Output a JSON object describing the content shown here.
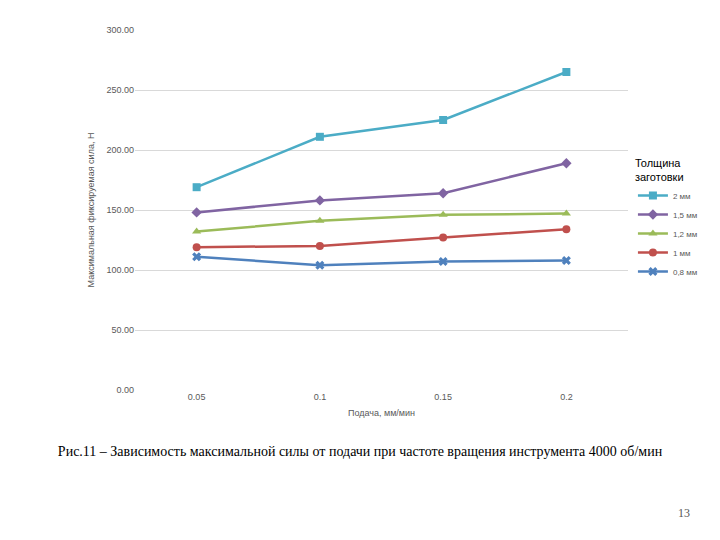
{
  "chart_data": {
    "type": "line",
    "x_label": "Подача, мм/мин",
    "y_label": "Максимальная фиксируемая сила, Н",
    "categories": [
      "0.05",
      "0.1",
      "0.15",
      "0.2"
    ],
    "legend_title": "Толщина заготовки",
    "legend": "right",
    "grid": true,
    "ylim": [
      0,
      300
    ],
    "yticks": [
      {
        "value": 0,
        "label": "0.00"
      },
      {
        "value": 50,
        "label": "50.00"
      },
      {
        "value": 100,
        "label": "100.00"
      },
      {
        "value": 150,
        "label": "150.00"
      },
      {
        "value": 200,
        "label": "200.00"
      },
      {
        "value": 250,
        "label": "250.00"
      },
      {
        "value": 300,
        "label": "300.00"
      }
    ],
    "series": [
      {
        "name": "2 мм",
        "color": "#4bacc6",
        "marker": "square",
        "values": [
          169,
          211,
          225,
          265
        ]
      },
      {
        "name": "1,5 мм",
        "color": "#8064a2",
        "marker": "diamond",
        "values": [
          148,
          158,
          164,
          189
        ]
      },
      {
        "name": "1,2 мм",
        "color": "#9bbb59",
        "marker": "triangle-up",
        "values": [
          132,
          141,
          146,
          147
        ]
      },
      {
        "name": "1 мм",
        "color": "#c0504d",
        "marker": "circle",
        "values": [
          119,
          120,
          127,
          134
        ]
      },
      {
        "name": "0,8 мм",
        "color": "#4f81bd",
        "marker": "x",
        "values": [
          111,
          104,
          107,
          108
        ]
      }
    ]
  },
  "caption": "Рис.11 – Зависимость максимальной силы от подачи при частоте вращения инструмента 4000 об/мин",
  "page_number": 13
}
